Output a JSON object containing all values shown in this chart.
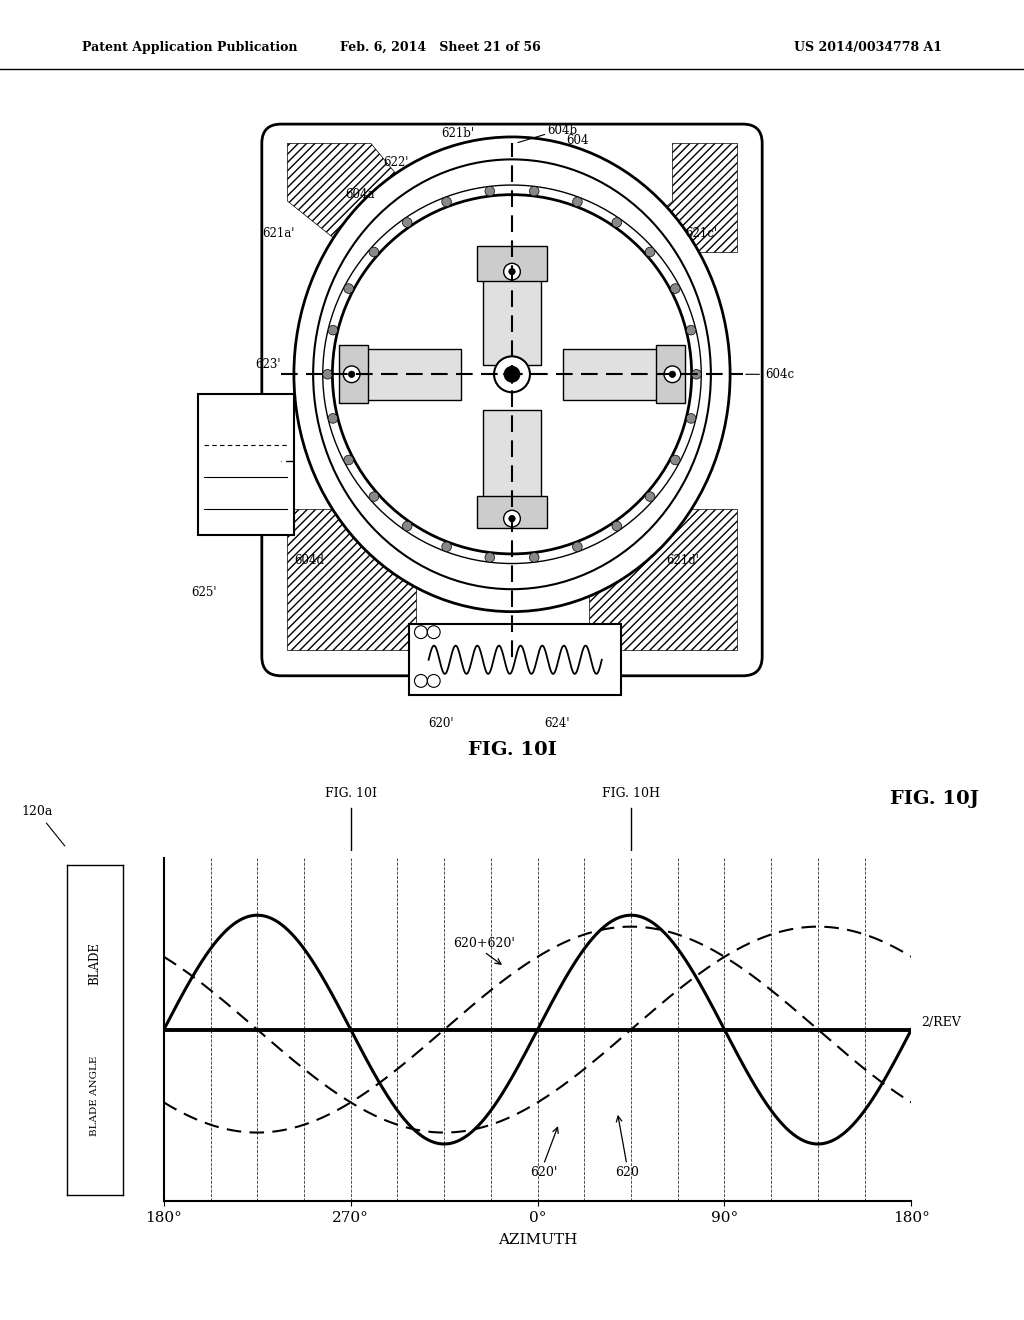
{
  "bg_color": "#ffffff",
  "header_left": "Patent Application Publication",
  "header_mid": "Feb. 6, 2014   Sheet 21 of 56",
  "header_right": "US 2014/0034778 A1",
  "fig10i_label": "FIG. 10I",
  "fig10j_label": "FIG. 10J",
  "xlabel": "AZIMUTH",
  "ylabel_top": "BLADE",
  "ylabel_bottom": "BLADE ANGLE",
  "x_ticks": [
    "180°",
    "270°",
    "0°",
    "90°",
    "180°"
  ],
  "curve_label_sum": "620+620'",
  "curve_label_620p": "620'",
  "curve_label_620": "620",
  "curve_label_2rev": "2/REV",
  "ref_label_120a": "120a",
  "ref_604b": "604b",
  "ref_621bp": "621b'",
  "ref_604": "604",
  "ref_622p": "622'",
  "ref_604a": "604a",
  "ref_621ap": "621a'",
  "ref_621cp": "621c'",
  "ref_623p": "623'",
  "ref_604c": "604c",
  "ref_604d": "604d",
  "ref_621dp": "621d'",
  "ref_625p": "625'",
  "ref_620p_bottom": "620'",
  "ref_624p": "624'",
  "fig10i_marker": "FIG. 10I",
  "fig10h_marker": "FIG. 10H"
}
